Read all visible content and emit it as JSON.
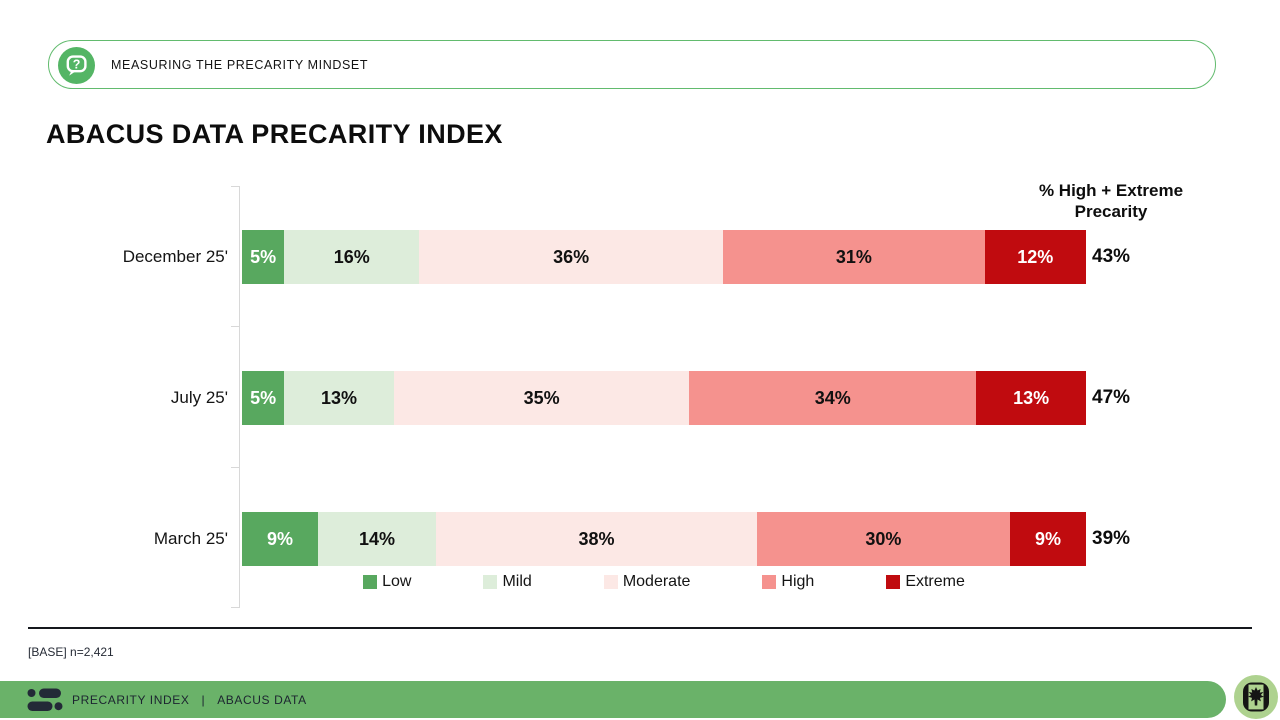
{
  "callout": {
    "icon": "question-bubble-icon",
    "label": "MEASURING THE PRECARITY MINDSET",
    "border_color": "#62bb6e"
  },
  "title": "ABACUS DATA PRECARITY INDEX",
  "chart_data": {
    "type": "bar",
    "orientation": "horizontal",
    "stacked": true,
    "unit": "%",
    "grid": false,
    "categories": [
      "December 25'",
      "July 25'",
      "March 25'"
    ],
    "series": [
      {
        "name": "Low",
        "color": "#58a85f",
        "label_color": "#ffffff",
        "values": [
          5,
          5,
          9
        ]
      },
      {
        "name": "Mild",
        "color": "#ddedda",
        "label_color": "#111111",
        "values": [
          16,
          13,
          14
        ]
      },
      {
        "name": "Moderate",
        "color": "#fce8e5",
        "label_color": "#111111",
        "values": [
          36,
          35,
          38
        ]
      },
      {
        "name": "High",
        "color": "#f5928e",
        "label_color": "#111111",
        "values": [
          31,
          34,
          30
        ]
      },
      {
        "name": "Extreme",
        "color": "#c00b0f",
        "label_color": "#ffffff",
        "values": [
          12,
          13,
          9
        ]
      }
    ],
    "totals": {
      "header_lines": [
        "% High + Extreme",
        "Precarity"
      ],
      "values": [
        "43%",
        "47%",
        "39%"
      ]
    },
    "legend": [
      "Low",
      "Mild",
      "Moderate",
      "High",
      "Extreme"
    ],
    "legend_position": "bottom",
    "axis_line_color": "#d8d8d8"
  },
  "footnote": "[BASE] n=2,421",
  "footer": {
    "icon": "abacus-logo-icon",
    "brand": "PRECARITY INDEX",
    "separator": "|",
    "org": "ABACUS DATA",
    "bar_color": "#6ab269"
  },
  "corner_logo": "maple-leaf-badge-icon"
}
